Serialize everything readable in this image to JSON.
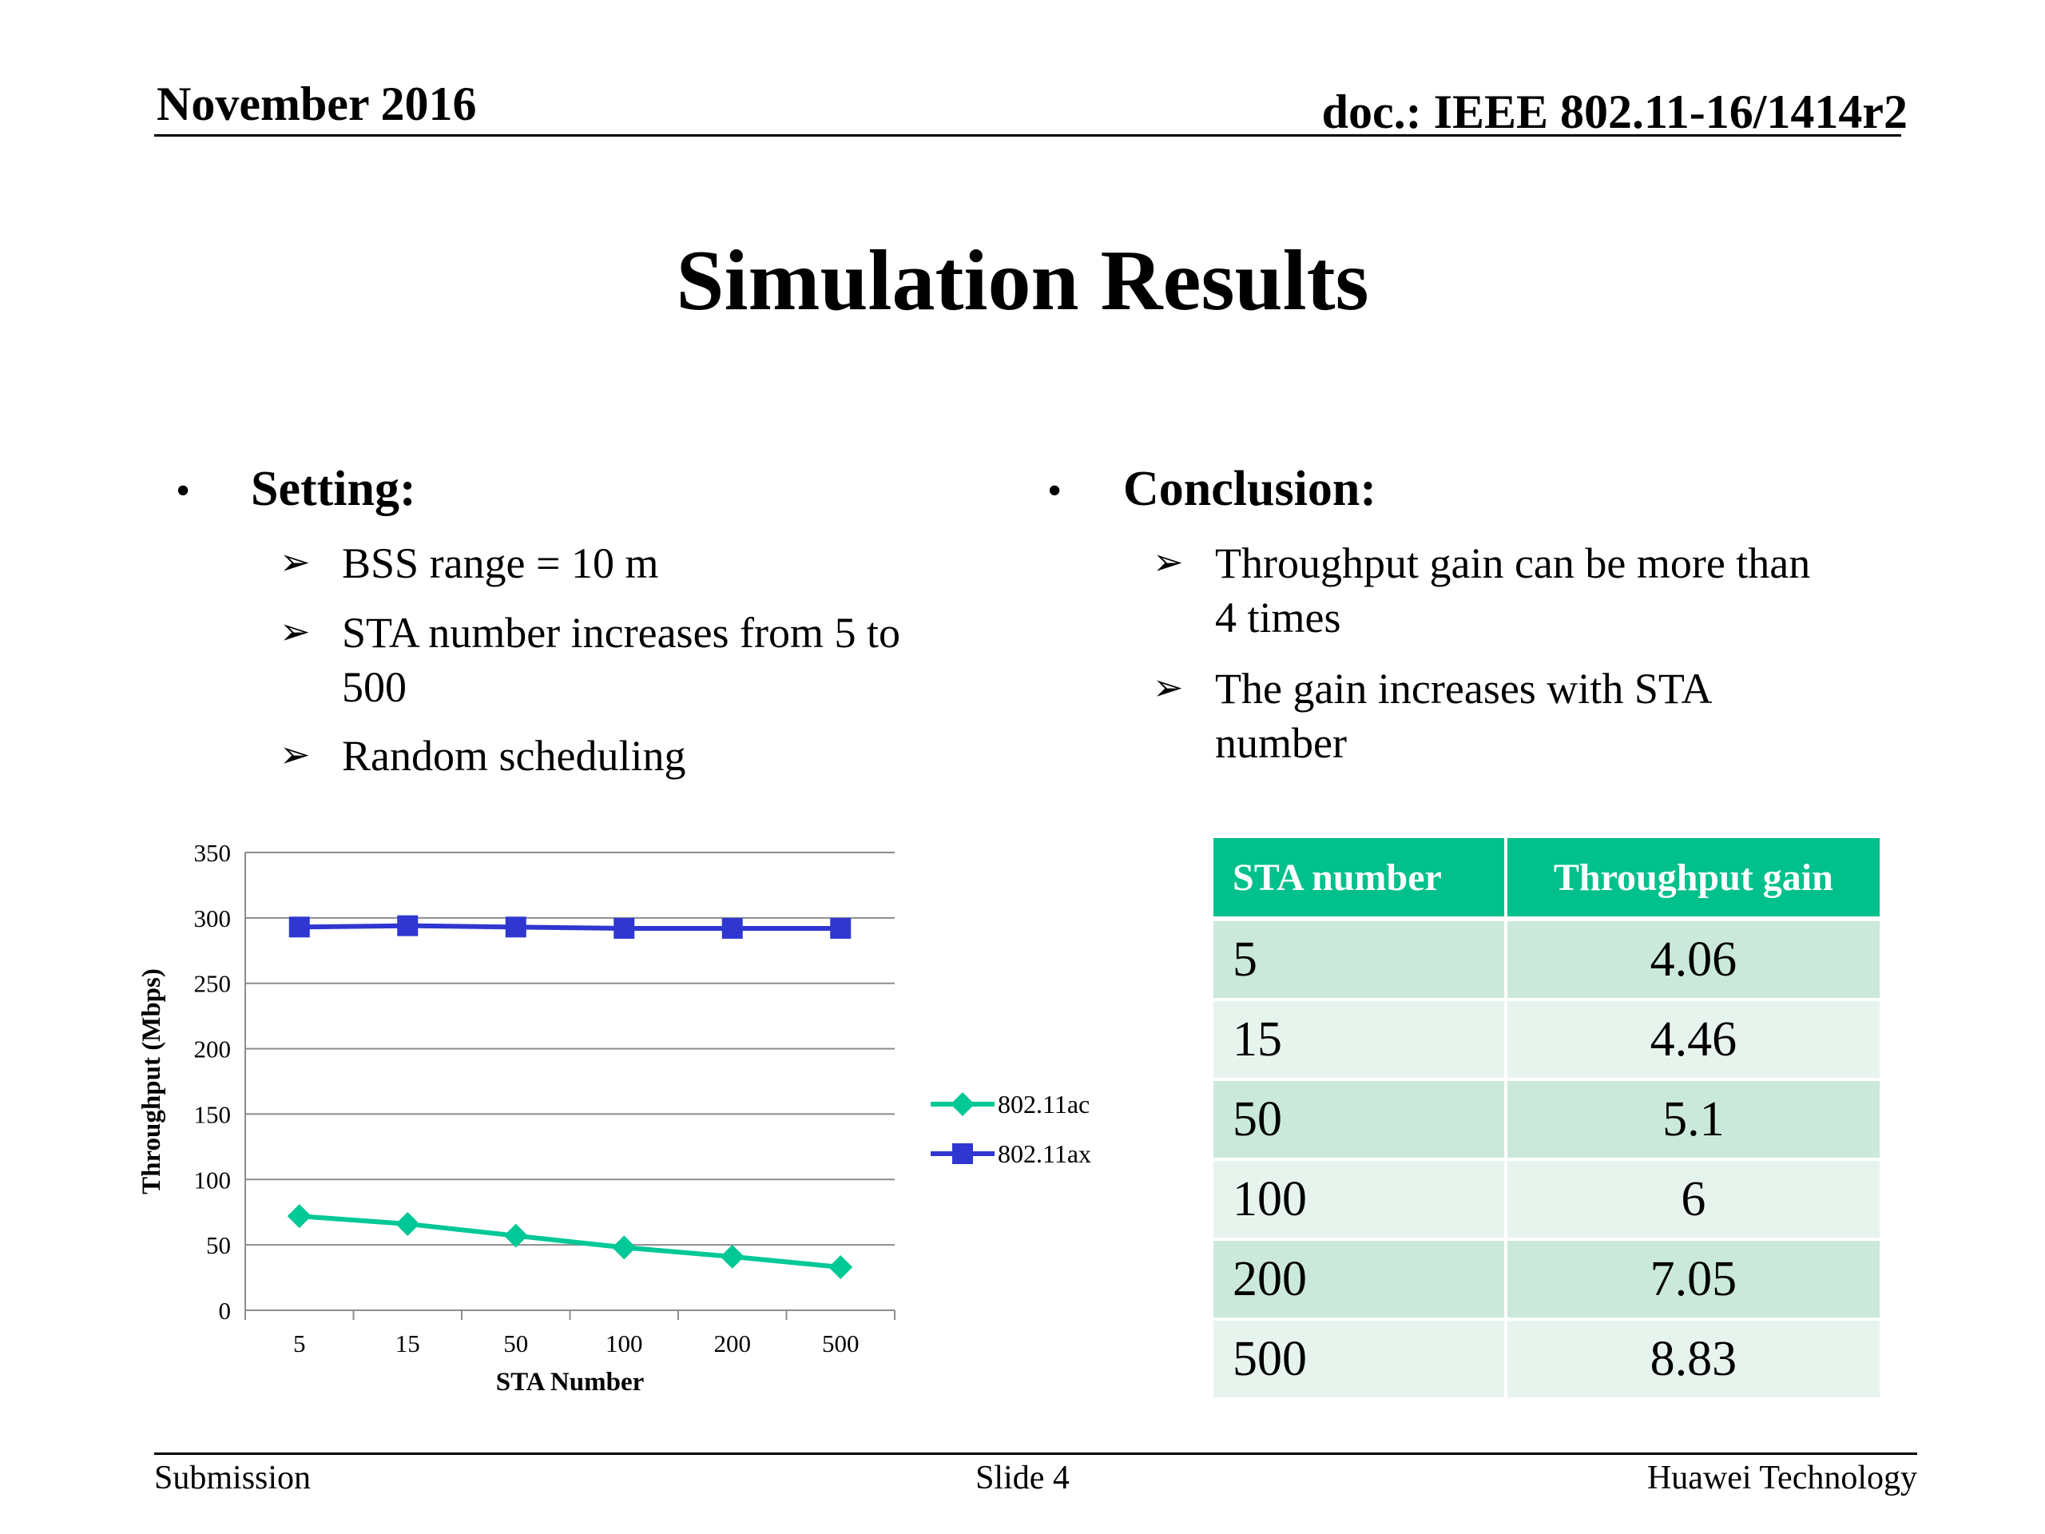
{
  "header": {
    "date": "November 2016",
    "doc": "doc.: IEEE 802.11-16/1414r2"
  },
  "title": "Simulation Results",
  "setting": {
    "heading": "Setting:",
    "items": [
      {
        "lines": [
          "BSS range = 10 m"
        ]
      },
      {
        "lines": [
          "STA number increases from 5 to",
          "500"
        ]
      },
      {
        "lines": [
          "Random scheduling"
        ]
      }
    ]
  },
  "conclusion": {
    "heading": "Conclusion:",
    "items": [
      {
        "lines": [
          "Throughput gain can be more than",
          "4 times"
        ]
      },
      {
        "lines": [
          "The gain increases with STA",
          "number"
        ]
      }
    ]
  },
  "chart_data": {
    "type": "line",
    "categories": [
      "5",
      "15",
      "50",
      "100",
      "200",
      "500"
    ],
    "series": [
      {
        "name": "802.11ac",
        "color": "#00c896",
        "marker": "diamond",
        "values": [
          72,
          66,
          57,
          48,
          41,
          33
        ]
      },
      {
        "name": "802.11ax",
        "color": "#2f37d0",
        "marker": "square",
        "values": [
          293,
          294,
          293,
          292,
          292,
          292
        ]
      }
    ],
    "xlabel": "STA Number",
    "ylabel": "Throughput (Mbps)",
    "ylim": [
      0,
      350
    ],
    "yticks": [
      0,
      50,
      100,
      150,
      200,
      250,
      300,
      350
    ],
    "grid": true,
    "legend": "right"
  },
  "table": {
    "headers": [
      "STA number",
      "Throughput gain"
    ],
    "rows": [
      [
        "5",
        "4.06"
      ],
      [
        "15",
        "4.46"
      ],
      [
        "50",
        "5.1"
      ],
      [
        "100",
        "6"
      ],
      [
        "200",
        "7.05"
      ],
      [
        "500",
        "8.83"
      ]
    ]
  },
  "footer": {
    "left": "Submission",
    "center": "Slide 4",
    "right": "Huawei Technology"
  }
}
